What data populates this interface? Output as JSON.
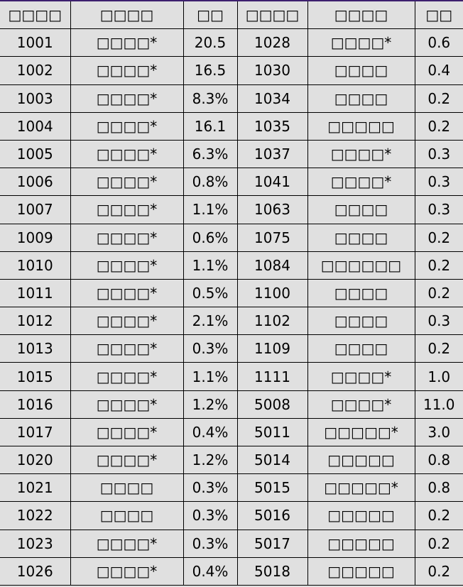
{
  "table": {
    "headers": [
      "□□□□",
      "□□□□",
      "□□",
      "□□□□",
      "□□□□",
      "□□"
    ],
    "rows": [
      [
        "1001",
        "□□□□*",
        "20.5",
        "1028",
        "□□□□*",
        "0.6"
      ],
      [
        "1002",
        "□□□□*",
        "16.5",
        "1030",
        "□□□□",
        "0.4"
      ],
      [
        "1003",
        "□□□□*",
        "8.3%",
        "1034",
        "□□□□",
        "0.2"
      ],
      [
        "1004",
        "□□□□*",
        "16.1",
        "1035",
        "□□□□□",
        "0.2"
      ],
      [
        "1005",
        "□□□□*",
        "6.3%",
        "1037",
        "□□□□*",
        "0.3"
      ],
      [
        "1006",
        "□□□□*",
        "0.8%",
        "1041",
        "□□□□*",
        "0.3"
      ],
      [
        "1007",
        "□□□□*",
        "1.1%",
        "1063",
        "□□□□",
        "0.3"
      ],
      [
        "1009",
        "□□□□*",
        "0.6%",
        "1075",
        "□□□□",
        "0.2"
      ],
      [
        "1010",
        "□□□□*",
        "1.1%",
        "1084",
        "□□□□□□",
        "0.2"
      ],
      [
        "1011",
        "□□□□*",
        "0.5%",
        "1100",
        "□□□□",
        "0.2"
      ],
      [
        "1012",
        "□□□□*",
        "2.1%",
        "1102",
        "□□□□",
        "0.3"
      ],
      [
        "1013",
        "□□□□*",
        "0.3%",
        "1109",
        "□□□□",
        "0.2"
      ],
      [
        "1015",
        "□□□□*",
        "1.1%",
        "1111",
        "□□□□*",
        "1.0"
      ],
      [
        "1016",
        "□□□□*",
        "1.2%",
        "5008",
        "□□□□*",
        "11.0"
      ],
      [
        "1017",
        "□□□□*",
        "0.4%",
        "5011",
        "□□□□□*",
        "3.0"
      ],
      [
        "1020",
        "□□□□*",
        "1.2%",
        "5014",
        "□□□□□",
        "0.8"
      ],
      [
        "1021",
        "□□□□",
        "0.3%",
        "5015",
        "□□□□□*",
        "0.8"
      ],
      [
        "1022",
        "□□□□",
        "0.3%",
        "5016",
        "□□□□□",
        "0.2"
      ],
      [
        "1023",
        "□□□□*",
        "0.3%",
        "5017",
        "□□□□□",
        "0.2"
      ],
      [
        "1026",
        "□□□□*",
        "0.4%",
        "5018",
        "□□□□□",
        "0.2"
      ]
    ]
  },
  "colors": {
    "background": "#e0e0e0",
    "border": "#000000",
    "top_border": "#3d1f6e"
  }
}
